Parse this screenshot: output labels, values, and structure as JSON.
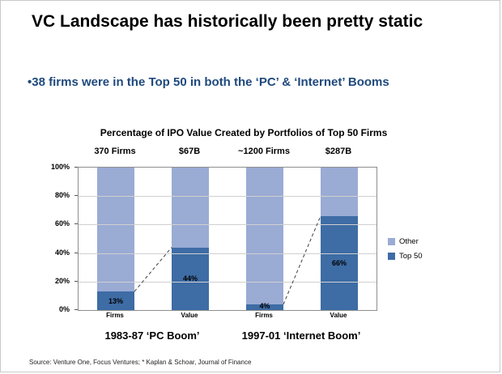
{
  "slide": {
    "title": "VC Landscape has historically been pretty static",
    "bullet": "•38 firms were in the Top 50 in both the ‘PC’ & ‘Internet’ Booms",
    "source": "Source: Venture One, Focus Ventures; * Kaplan & Schoar, Journal of Finance"
  },
  "colors": {
    "accent_blue": "#1F497D",
    "other_series": "#9AABD4",
    "top50_series": "#3E6CA5"
  },
  "chart_data": {
    "type": "bar",
    "subtype": "stacked-percent",
    "title": "Percentage of IPO Value Created by Portfolios of Top 50 Firms",
    "column_headers": [
      "370 Firms",
      "$67B",
      "~1200 Firms",
      "$287B"
    ],
    "categories": [
      "Firms",
      "Value",
      "Firms",
      "Value"
    ],
    "group_labels": [
      "1983-87  ‘PC Boom’",
      "1997-01 ‘Internet Boom’"
    ],
    "series": [
      {
        "name": "Top 50",
        "color": "#3E6CA5",
        "values": [
          13,
          44,
          4,
          66
        ]
      },
      {
        "name": "Other",
        "color": "#9AABD4",
        "values": [
          87,
          56,
          96,
          34
        ]
      }
    ],
    "bar_labels": [
      "13%",
      "44%",
      "4%",
      "66%"
    ],
    "ylim": [
      0,
      100
    ],
    "yticks": [
      "0%",
      "20%",
      "40%",
      "60%",
      "80%",
      "100%"
    ],
    "ytick_values": [
      0,
      20,
      40,
      60,
      80,
      100
    ],
    "grid": true,
    "legend": [
      "Other",
      "Top 50"
    ],
    "legend_position": "right",
    "connectors": [
      [
        0,
        1
      ],
      [
        2,
        3
      ]
    ]
  }
}
